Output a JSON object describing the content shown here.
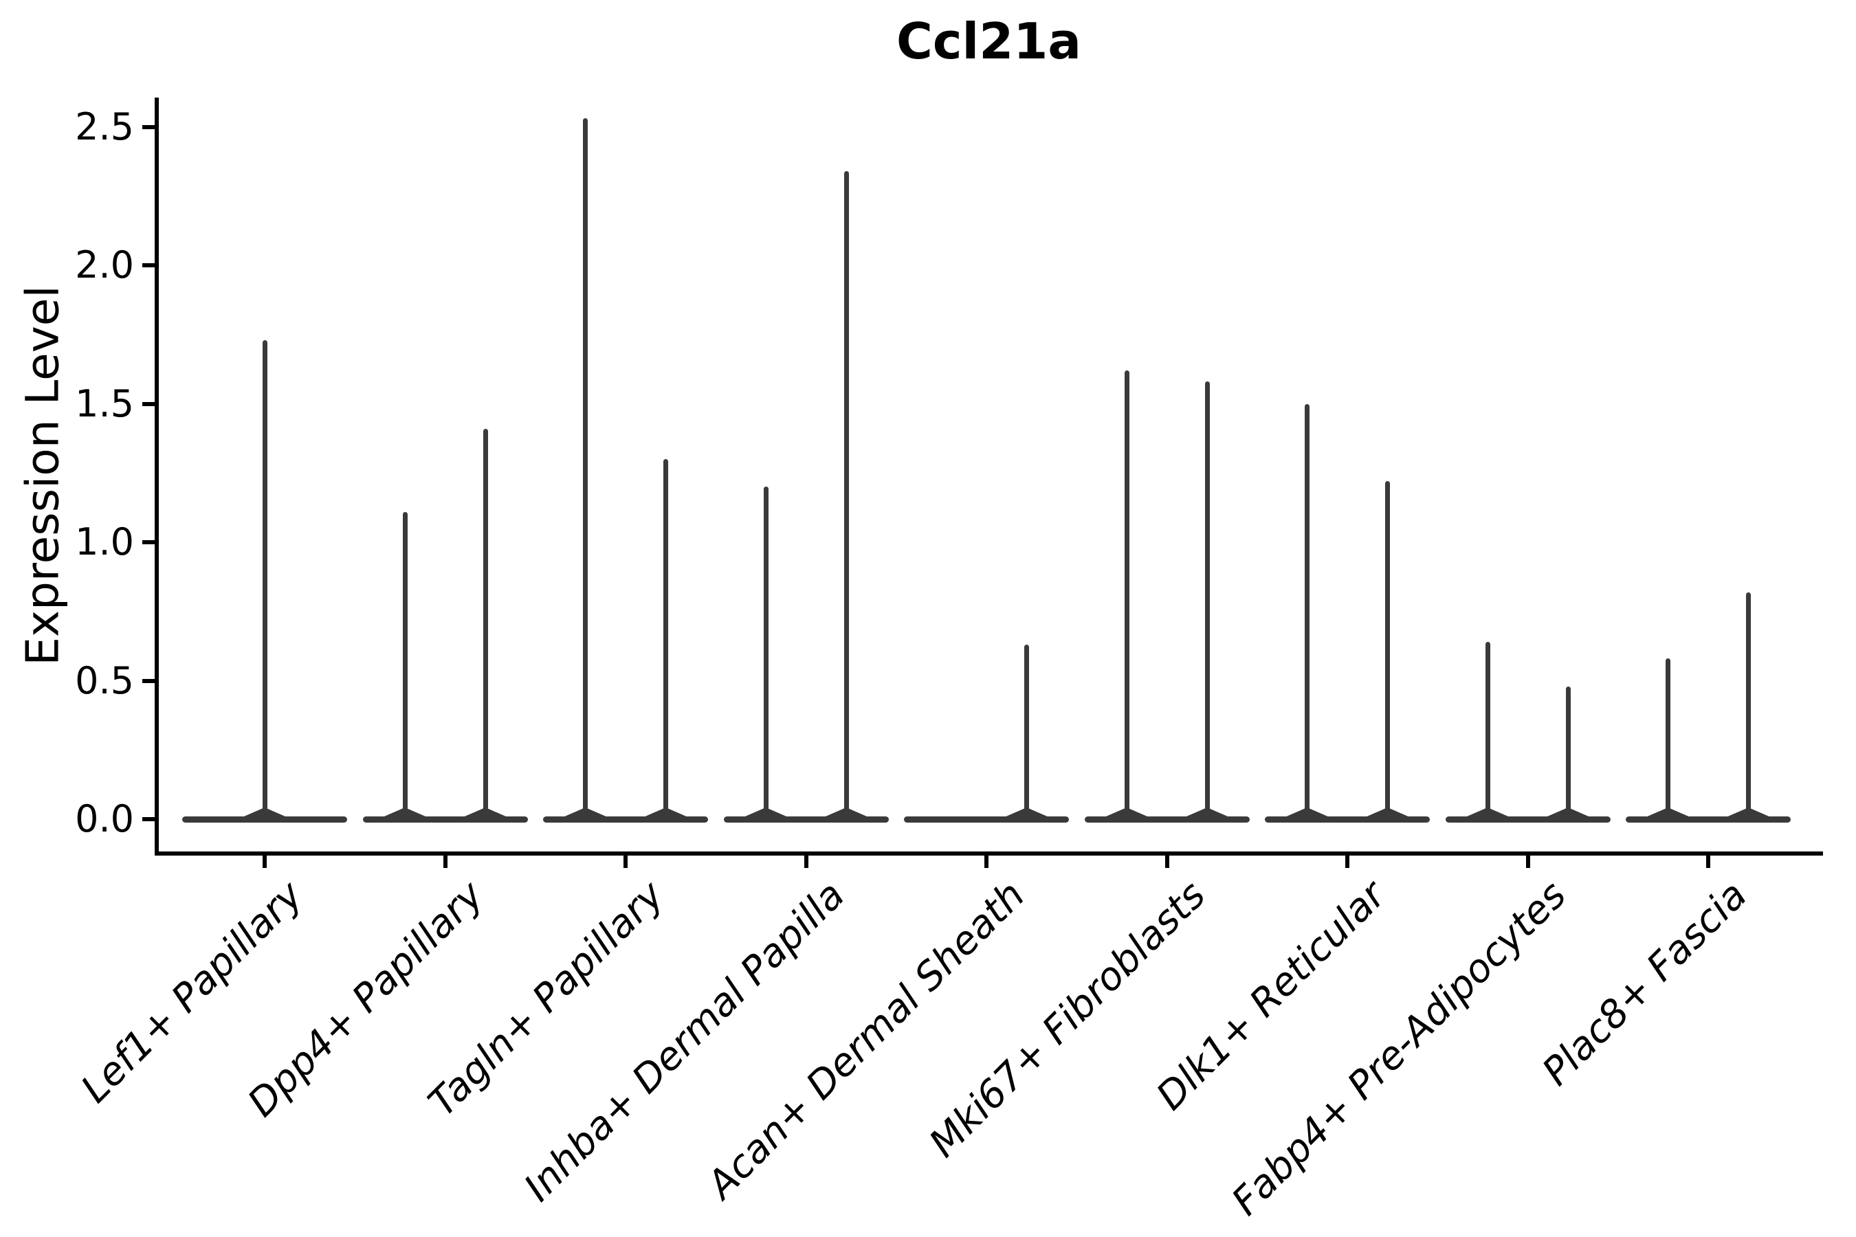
{
  "chart_data": {
    "type": "violin",
    "title": "Ccl21a",
    "ylabel": "Expression Level",
    "xlabel": "",
    "ylim": [
      -0.12,
      2.6
    ],
    "grid": false,
    "legend": "none",
    "style_note": "Seurat-style violin plot; densities are collapsed into a wide flat bar at expression 0 with a thin spike rising to the maximum expression per violin; two violins (left/right) per cell-type group unless noted",
    "colors": {
      "violin": "#3a3a3a",
      "axis": "#000000",
      "text": "#000000",
      "background": "#ffffff"
    },
    "yticks": [
      {
        "value": 0.0,
        "label": "0.0"
      },
      {
        "value": 0.5,
        "label": "0.5"
      },
      {
        "value": 1.0,
        "label": "1.0"
      },
      {
        "value": 1.5,
        "label": "1.5"
      },
      {
        "value": 2.0,
        "label": "2.0"
      },
      {
        "value": 2.5,
        "label": "2.5"
      }
    ],
    "categories": [
      "Lef1+ Papillary",
      "Dpp4+ Papillary",
      "Tagln+ Papillary",
      "Inhba+ Dermal Papilla",
      "Acan+ Dermal Sheath",
      "Mki67+ Fibroblasts",
      "Dlk1+ Reticular",
      "Fabp4+ Pre-Adipocytes",
      "Plac8+ Fascia"
    ],
    "groups": [
      {
        "label": "Lef1+ Papillary",
        "spikes": [
          {
            "slot": "center",
            "max_expression": 1.73
          }
        ]
      },
      {
        "label": "Dpp4+ Papillary",
        "spikes": [
          {
            "slot": "left",
            "max_expression": 1.11
          },
          {
            "slot": "right",
            "max_expression": 1.41
          }
        ]
      },
      {
        "label": "Tagln+ Papillary",
        "spikes": [
          {
            "slot": "left",
            "max_expression": 2.53
          },
          {
            "slot": "right",
            "max_expression": 1.3
          }
        ]
      },
      {
        "label": "Inhba+ Dermal Papilla",
        "spikes": [
          {
            "slot": "left",
            "max_expression": 1.2
          },
          {
            "slot": "right",
            "max_expression": 2.34
          }
        ]
      },
      {
        "label": "Acan+ Dermal Sheath",
        "spikes": [
          {
            "slot": "right",
            "max_expression": 0.63
          }
        ]
      },
      {
        "label": "Mki67+ Fibroblasts",
        "spikes": [
          {
            "slot": "left",
            "max_expression": 1.62
          },
          {
            "slot": "right",
            "max_expression": 1.58
          }
        ]
      },
      {
        "label": "Dlk1+ Reticular",
        "spikes": [
          {
            "slot": "left",
            "max_expression": 1.5
          },
          {
            "slot": "right",
            "max_expression": 1.22
          }
        ]
      },
      {
        "label": "Fabp4+ Pre-Adipocytes",
        "spikes": [
          {
            "slot": "left",
            "max_expression": 0.64
          },
          {
            "slot": "right",
            "max_expression": 0.48
          }
        ]
      },
      {
        "label": "Plac8+ Fascia",
        "spikes": [
          {
            "slot": "left",
            "max_expression": 0.58
          },
          {
            "slot": "right",
            "max_expression": 0.82
          }
        ]
      }
    ]
  }
}
